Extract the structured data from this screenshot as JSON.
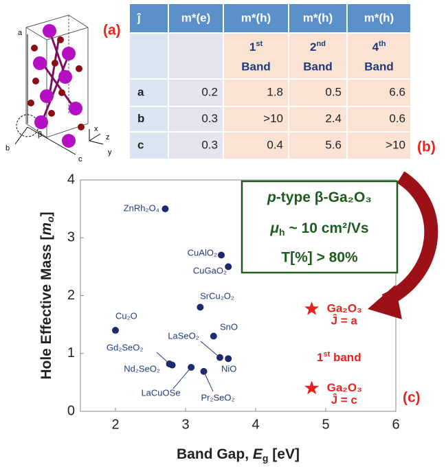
{
  "structure": {
    "panel_label": "(a)",
    "axes": [
      "a",
      "b",
      "c",
      "x",
      "y",
      "z",
      "β"
    ]
  },
  "table": {
    "panel_label": "(b)",
    "header": [
      "ĵ",
      "m*(e)",
      "m*(h)",
      "m*(h)",
      "m*(h)"
    ],
    "subheader": [
      {
        "n": "1",
        "sup": "st",
        "word": "Band"
      },
      {
        "n": "2",
        "sup": "nd",
        "word": "Band"
      },
      {
        "n": "4",
        "sup": "th",
        "word": "Band"
      }
    ],
    "rows": [
      [
        "a",
        0.2,
        1.8,
        0.5,
        6.6
      ],
      [
        "b",
        0.3,
        ">10",
        2.4,
        0.6
      ],
      [
        "c",
        0.3,
        0.4,
        5.6,
        ">10"
      ]
    ]
  },
  "chart_data": {
    "type": "scatter",
    "panel_label": "(c)",
    "xlabel": [
      "Band Gap, ",
      "E",
      "g",
      " [eV]"
    ],
    "ylabel": [
      "Hole Effective Mass [",
      "m",
      "o",
      "]"
    ],
    "xlim": [
      1.5,
      6
    ],
    "ylim": [
      0,
      4
    ],
    "xticks": [
      2,
      3,
      4,
      5,
      6
    ],
    "yticks": [
      0,
      1,
      2,
      3,
      4
    ],
    "color": "#1f2a6e",
    "highlight_color": "#e8231d",
    "points": [
      {
        "label": "ZnRh₂O₄",
        "x": 2.71,
        "y": 3.5
      },
      {
        "label": "CuAlO₂",
        "x": 3.51,
        "y": 2.7
      },
      {
        "label": "CuGaO₂",
        "x": 3.61,
        "y": 2.5
      },
      {
        "label": "SrCu₂O₂",
        "x": 3.21,
        "y": 1.8
      },
      {
        "label": "Cu₂O",
        "x": 2.0,
        "y": 1.4
      },
      {
        "label": "SnO",
        "x": 3.4,
        "y": 1.3
      },
      {
        "label": "Gd₂SeO₂",
        "x": 2.77,
        "y": 0.82
      },
      {
        "label": "Nd₂SeO₂",
        "x": 2.81,
        "y": 0.8
      },
      {
        "label": "LaSeO₂",
        "x": 3.49,
        "y": 0.93
      },
      {
        "label": "NiO",
        "x": 3.61,
        "y": 0.91
      },
      {
        "label": "LaCuOSe",
        "x": 3.08,
        "y": 0.76
      },
      {
        "label": "Pr₂SeO₂",
        "x": 3.26,
        "y": 0.69
      }
    ],
    "highlights": [
      {
        "label": [
          "Ga₂O₃",
          "Ĵ = a"
        ],
        "x": 4.8,
        "y": 1.77
      },
      {
        "label": [
          "Ga₂O₃",
          "Ĵ = c"
        ],
        "x": 4.8,
        "y": 0.4
      }
    ],
    "band_note": [
      "1",
      "st",
      " band"
    ],
    "annotation": [
      "p",
      "-type β-Ga₂O₃",
      "μ",
      "h",
      " ~ 10 cm²/Vs",
      "T[%] > 80%"
    ]
  }
}
